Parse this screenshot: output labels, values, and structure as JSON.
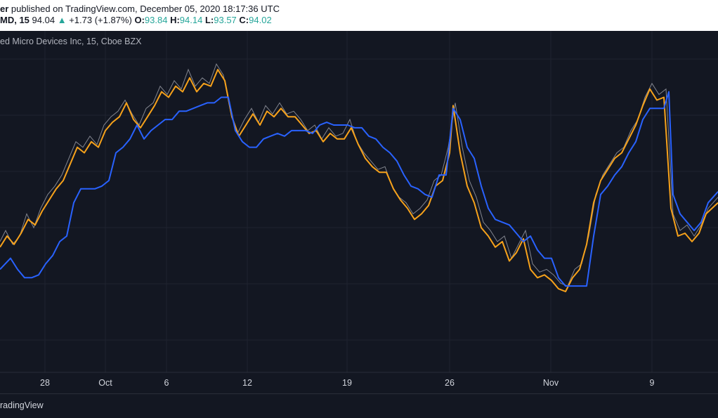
{
  "header": {
    "author_fragment": "er",
    "published_text": " published on TradingView.com, December 05, 2020 18:17:36 UTC",
    "symbol_fragment": "MD, 15",
    "last": "94.04",
    "arrow": "▲",
    "change": "+1.73 (+1.87%)",
    "o_label": "O:",
    "o_value": "93.84",
    "h_label": "H:",
    "h_value": "94.14",
    "l_label": "L:",
    "l_value": "93.57",
    "c_label": "C:",
    "c_value": "94.02"
  },
  "legend": {
    "title_fragment": "ed Micro Devices Inc, 15, Cboe BZX"
  },
  "footer": {
    "brand_fragment": "radingView"
  },
  "colors": {
    "background": "#131722",
    "price": "#9598a1",
    "orange": "#f7a21b",
    "blue": "#2962ff",
    "grid": "#1f2330",
    "teal": "#26a69a"
  },
  "chart_data": {
    "type": "line",
    "x_ticks": [
      "28",
      "Oct",
      "6",
      "12",
      "19",
      "26",
      "Nov",
      "9"
    ],
    "ylim": [
      0,
      1
    ],
    "price_series": [
      [
        0,
        0.62
      ],
      [
        8,
        0.58
      ],
      [
        18,
        0.63
      ],
      [
        28,
        0.6
      ],
      [
        38,
        0.52
      ],
      [
        48,
        0.57
      ],
      [
        58,
        0.5
      ],
      [
        68,
        0.45
      ],
      [
        78,
        0.42
      ],
      [
        88,
        0.38
      ],
      [
        98,
        0.32
      ],
      [
        108,
        0.26
      ],
      [
        118,
        0.28
      ],
      [
        128,
        0.24
      ],
      [
        138,
        0.27
      ],
      [
        148,
        0.2
      ],
      [
        158,
        0.17
      ],
      [
        168,
        0.15
      ],
      [
        178,
        0.11
      ],
      [
        188,
        0.16
      ],
      [
        198,
        0.2
      ],
      [
        208,
        0.14
      ],
      [
        218,
        0.12
      ],
      [
        228,
        0.06
      ],
      [
        238,
        0.09
      ],
      [
        248,
        0.04
      ],
      [
        258,
        0.07
      ],
      [
        268,
        0.0
      ],
      [
        278,
        0.06
      ],
      [
        288,
        0.03
      ],
      [
        298,
        0.05
      ],
      [
        308,
        -0.02
      ],
      [
        318,
        0.02
      ],
      [
        328,
        0.15
      ],
      [
        338,
        0.23
      ],
      [
        348,
        0.18
      ],
      [
        358,
        0.14
      ],
      [
        368,
        0.19
      ],
      [
        378,
        0.13
      ],
      [
        388,
        0.16
      ],
      [
        398,
        0.12
      ],
      [
        408,
        0.16
      ],
      [
        418,
        0.15
      ],
      [
        428,
        0.18
      ],
      [
        438,
        0.22
      ],
      [
        448,
        0.2
      ],
      [
        458,
        0.25
      ],
      [
        468,
        0.21
      ],
      [
        478,
        0.24
      ],
      [
        488,
        0.23
      ],
      [
        498,
        0.18
      ],
      [
        508,
        0.26
      ],
      [
        518,
        0.3
      ],
      [
        528,
        0.33
      ],
      [
        538,
        0.36
      ],
      [
        548,
        0.35
      ],
      [
        558,
        0.42
      ],
      [
        568,
        0.46
      ],
      [
        578,
        0.48
      ],
      [
        588,
        0.52
      ],
      [
        598,
        0.5
      ],
      [
        608,
        0.47
      ],
      [
        618,
        0.4
      ],
      [
        628,
        0.38
      ],
      [
        638,
        0.28
      ],
      [
        648,
        0.12
      ],
      [
        658,
        0.28
      ],
      [
        668,
        0.4
      ],
      [
        678,
        0.46
      ],
      [
        688,
        0.55
      ],
      [
        698,
        0.58
      ],
      [
        708,
        0.62
      ],
      [
        718,
        0.6
      ],
      [
        728,
        0.68
      ],
      [
        738,
        0.63
      ],
      [
        748,
        0.58
      ],
      [
        758,
        0.7
      ],
      [
        768,
        0.73
      ],
      [
        778,
        0.72
      ],
      [
        788,
        0.74
      ],
      [
        798,
        0.77
      ],
      [
        808,
        0.78
      ],
      [
        818,
        0.72
      ],
      [
        828,
        0.7
      ],
      [
        838,
        0.6
      ],
      [
        848,
        0.45
      ],
      [
        858,
        0.38
      ],
      [
        868,
        0.34
      ],
      [
        878,
        0.3
      ],
      [
        888,
        0.28
      ],
      [
        898,
        0.22
      ],
      [
        908,
        0.18
      ],
      [
        918,
        0.1
      ],
      [
        928,
        0.05
      ],
      [
        938,
        0.09
      ],
      [
        948,
        0.07
      ],
      [
        958,
        0.52
      ],
      [
        968,
        0.58
      ],
      [
        978,
        0.56
      ],
      [
        988,
        0.6
      ],
      [
        998,
        0.56
      ],
      [
        1008,
        0.5
      ],
      [
        1022,
        0.46
      ]
    ],
    "series": [
      {
        "color": "#f7a21b",
        "values": [
          [
            0,
            0.64
          ],
          [
            10,
            0.6
          ],
          [
            20,
            0.63
          ],
          [
            30,
            0.59
          ],
          [
            40,
            0.54
          ],
          [
            50,
            0.56
          ],
          [
            60,
            0.51
          ],
          [
            70,
            0.47
          ],
          [
            80,
            0.43
          ],
          [
            90,
            0.4
          ],
          [
            100,
            0.34
          ],
          [
            110,
            0.28
          ],
          [
            120,
            0.3
          ],
          [
            130,
            0.26
          ],
          [
            140,
            0.28
          ],
          [
            150,
            0.22
          ],
          [
            160,
            0.19
          ],
          [
            170,
            0.17
          ],
          [
            180,
            0.12
          ],
          [
            190,
            0.18
          ],
          [
            200,
            0.21
          ],
          [
            210,
            0.17
          ],
          [
            220,
            0.13
          ],
          [
            230,
            0.08
          ],
          [
            240,
            0.1
          ],
          [
            250,
            0.06
          ],
          [
            260,
            0.08
          ],
          [
            270,
            0.03
          ],
          [
            280,
            0.08
          ],
          [
            290,
            0.05
          ],
          [
            300,
            0.06
          ],
          [
            310,
            0.0
          ],
          [
            320,
            0.04
          ],
          [
            330,
            0.17
          ],
          [
            340,
            0.24
          ],
          [
            350,
            0.2
          ],
          [
            360,
            0.16
          ],
          [
            370,
            0.2
          ],
          [
            380,
            0.15
          ],
          [
            390,
            0.17
          ],
          [
            400,
            0.14
          ],
          [
            410,
            0.17
          ],
          [
            420,
            0.17
          ],
          [
            430,
            0.2
          ],
          [
            440,
            0.23
          ],
          [
            450,
            0.22
          ],
          [
            460,
            0.26
          ],
          [
            470,
            0.23
          ],
          [
            480,
            0.25
          ],
          [
            490,
            0.25
          ],
          [
            500,
            0.21
          ],
          [
            510,
            0.27
          ],
          [
            520,
            0.32
          ],
          [
            530,
            0.35
          ],
          [
            540,
            0.37
          ],
          [
            550,
            0.37
          ],
          [
            560,
            0.43
          ],
          [
            570,
            0.47
          ],
          [
            580,
            0.5
          ],
          [
            590,
            0.54
          ],
          [
            600,
            0.52
          ],
          [
            610,
            0.49
          ],
          [
            620,
            0.42
          ],
          [
            630,
            0.4
          ],
          [
            640,
            0.3
          ],
          [
            645,
            0.13
          ],
          [
            655,
            0.3
          ],
          [
            665,
            0.42
          ],
          [
            675,
            0.48
          ],
          [
            685,
            0.57
          ],
          [
            695,
            0.6
          ],
          [
            705,
            0.64
          ],
          [
            715,
            0.62
          ],
          [
            725,
            0.69
          ],
          [
            735,
            0.66
          ],
          [
            745,
            0.61
          ],
          [
            755,
            0.72
          ],
          [
            765,
            0.75
          ],
          [
            775,
            0.74
          ],
          [
            785,
            0.76
          ],
          [
            795,
            0.79
          ],
          [
            805,
            0.8
          ],
          [
            815,
            0.75
          ],
          [
            825,
            0.72
          ],
          [
            835,
            0.63
          ],
          [
            845,
            0.48
          ],
          [
            855,
            0.4
          ],
          [
            865,
            0.36
          ],
          [
            875,
            0.32
          ],
          [
            885,
            0.3
          ],
          [
            895,
            0.25
          ],
          [
            905,
            0.2
          ],
          [
            915,
            0.13
          ],
          [
            925,
            0.07
          ],
          [
            935,
            0.11
          ],
          [
            945,
            0.1
          ],
          [
            955,
            0.5
          ],
          [
            965,
            0.6
          ],
          [
            975,
            0.59
          ],
          [
            985,
            0.62
          ],
          [
            995,
            0.59
          ],
          [
            1005,
            0.52
          ],
          [
            1022,
            0.48
          ]
        ]
      },
      {
        "color": "#2962ff",
        "values": [
          [
            0,
            0.72
          ],
          [
            15,
            0.68
          ],
          [
            25,
            0.72
          ],
          [
            35,
            0.75
          ],
          [
            45,
            0.75
          ],
          [
            55,
            0.74
          ],
          [
            65,
            0.7
          ],
          [
            75,
            0.67
          ],
          [
            85,
            0.62
          ],
          [
            95,
            0.6
          ],
          [
            105,
            0.48
          ],
          [
            115,
            0.43
          ],
          [
            125,
            0.43
          ],
          [
            135,
            0.43
          ],
          [
            145,
            0.42
          ],
          [
            155,
            0.4
          ],
          [
            165,
            0.3
          ],
          [
            175,
            0.28
          ],
          [
            185,
            0.25
          ],
          [
            195,
            0.2
          ],
          [
            205,
            0.25
          ],
          [
            215,
            0.22
          ],
          [
            225,
            0.2
          ],
          [
            235,
            0.18
          ],
          [
            245,
            0.18
          ],
          [
            255,
            0.15
          ],
          [
            265,
            0.15
          ],
          [
            275,
            0.14
          ],
          [
            285,
            0.13
          ],
          [
            295,
            0.12
          ],
          [
            305,
            0.12
          ],
          [
            315,
            0.1
          ],
          [
            325,
            0.1
          ],
          [
            335,
            0.22
          ],
          [
            345,
            0.26
          ],
          [
            355,
            0.28
          ],
          [
            365,
            0.28
          ],
          [
            375,
            0.25
          ],
          [
            385,
            0.24
          ],
          [
            395,
            0.23
          ],
          [
            405,
            0.24
          ],
          [
            415,
            0.22
          ],
          [
            425,
            0.22
          ],
          [
            435,
            0.22
          ],
          [
            445,
            0.23
          ],
          [
            455,
            0.2
          ],
          [
            465,
            0.19
          ],
          [
            475,
            0.2
          ],
          [
            485,
            0.2
          ],
          [
            495,
            0.2
          ],
          [
            505,
            0.21
          ],
          [
            515,
            0.21
          ],
          [
            525,
            0.24
          ],
          [
            535,
            0.25
          ],
          [
            545,
            0.28
          ],
          [
            555,
            0.3
          ],
          [
            565,
            0.33
          ],
          [
            575,
            0.38
          ],
          [
            585,
            0.42
          ],
          [
            595,
            0.43
          ],
          [
            605,
            0.45
          ],
          [
            615,
            0.46
          ],
          [
            625,
            0.38
          ],
          [
            635,
            0.38
          ],
          [
            645,
            0.14
          ],
          [
            655,
            0.18
          ],
          [
            665,
            0.28
          ],
          [
            675,
            0.32
          ],
          [
            685,
            0.42
          ],
          [
            695,
            0.5
          ],
          [
            705,
            0.54
          ],
          [
            715,
            0.55
          ],
          [
            725,
            0.56
          ],
          [
            735,
            0.59
          ],
          [
            745,
            0.62
          ],
          [
            755,
            0.6
          ],
          [
            765,
            0.65
          ],
          [
            775,
            0.68
          ],
          [
            785,
            0.68
          ],
          [
            795,
            0.75
          ],
          [
            805,
            0.78
          ],
          [
            815,
            0.78
          ],
          [
            825,
            0.78
          ],
          [
            835,
            0.78
          ],
          [
            845,
            0.6
          ],
          [
            855,
            0.45
          ],
          [
            865,
            0.42
          ],
          [
            875,
            0.38
          ],
          [
            885,
            0.35
          ],
          [
            895,
            0.3
          ],
          [
            905,
            0.26
          ],
          [
            915,
            0.18
          ],
          [
            925,
            0.14
          ],
          [
            935,
            0.14
          ],
          [
            945,
            0.14
          ],
          [
            952,
            0.08
          ],
          [
            958,
            0.45
          ],
          [
            968,
            0.52
          ],
          [
            978,
            0.55
          ],
          [
            988,
            0.58
          ],
          [
            998,
            0.55
          ],
          [
            1008,
            0.48
          ],
          [
            1022,
            0.44
          ]
        ]
      }
    ]
  }
}
